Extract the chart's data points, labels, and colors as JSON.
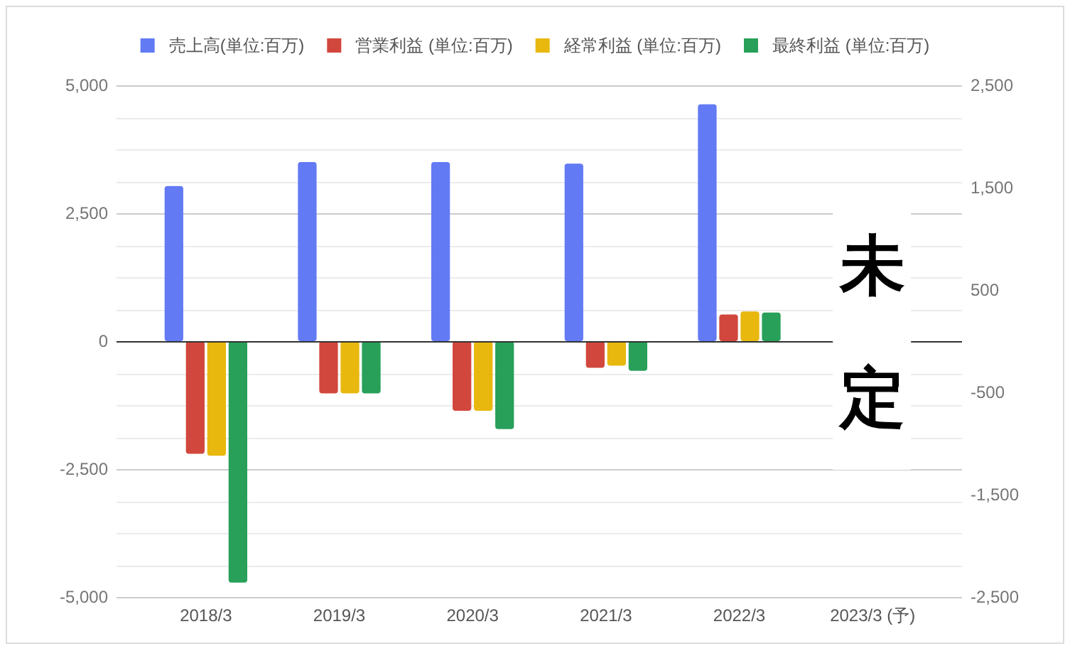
{
  "chart_data": {
    "type": "bar",
    "categories": [
      "2018/3",
      "2019/3",
      "2020/3",
      "2021/3",
      "2022/3",
      "2023/3 (予)"
    ],
    "series": [
      {
        "name": "売上高(単位:百万)",
        "color": "#637af5",
        "values": [
          3030,
          3500,
          3500,
          3470,
          4630,
          null
        ]
      },
      {
        "name": "営業利益 (単位:百万)",
        "color": "#d2473d",
        "axis": "y2",
        "values": [
          -1100,
          -510,
          -680,
          -260,
          260,
          null
        ]
      },
      {
        "name": "経常利益 (単位:百万)",
        "color": "#e8b80f",
        "axis": "y2",
        "values": [
          -1120,
          -510,
          -680,
          -240,
          290,
          null
        ]
      },
      {
        "name": "最終利益 (単位:百万)",
        "color": "#28a05a",
        "axis": "y2",
        "values": [
          -2360,
          -510,
          -860,
          -290,
          280,
          null
        ]
      }
    ],
    "ylim": [
      -5000,
      5000
    ],
    "yticks": [
      {
        "value": 5000,
        "label": "5,000"
      },
      {
        "value": 4375,
        "label": null
      },
      {
        "value": 3750,
        "label": null
      },
      {
        "value": 3125,
        "label": null
      },
      {
        "value": 2500,
        "label": "2,500"
      },
      {
        "value": 1875,
        "label": null
      },
      {
        "value": 1250,
        "label": null
      },
      {
        "value": 625,
        "label": null
      },
      0,
      {
        "value": -625,
        "label": null
      },
      {
        "value": -1250,
        "label": null
      },
      {
        "value": -1875,
        "label": null
      },
      {
        "value": -2500,
        "label": "-2,500"
      },
      {
        "value": -3125,
        "label": null
      },
      {
        "value": -3750,
        "label": null
      },
      {
        "value": -4375,
        "label": null
      },
      {
        "value": -5000,
        "label": "-5,000"
      }
    ],
    "y2lim": [
      -2500,
      2500
    ],
    "y2ticks": [
      {
        "value": 2500,
        "label": "2,500"
      },
      {
        "value": 1500,
        "label": "1,500"
      },
      500,
      -500,
      {
        "value": -1500,
        "label": "-1,500"
      },
      {
        "value": -2500,
        "label": "-2,500"
      }
    ],
    "grid": "y",
    "legend": "top",
    "annotations": [
      "未定"
    ]
  }
}
